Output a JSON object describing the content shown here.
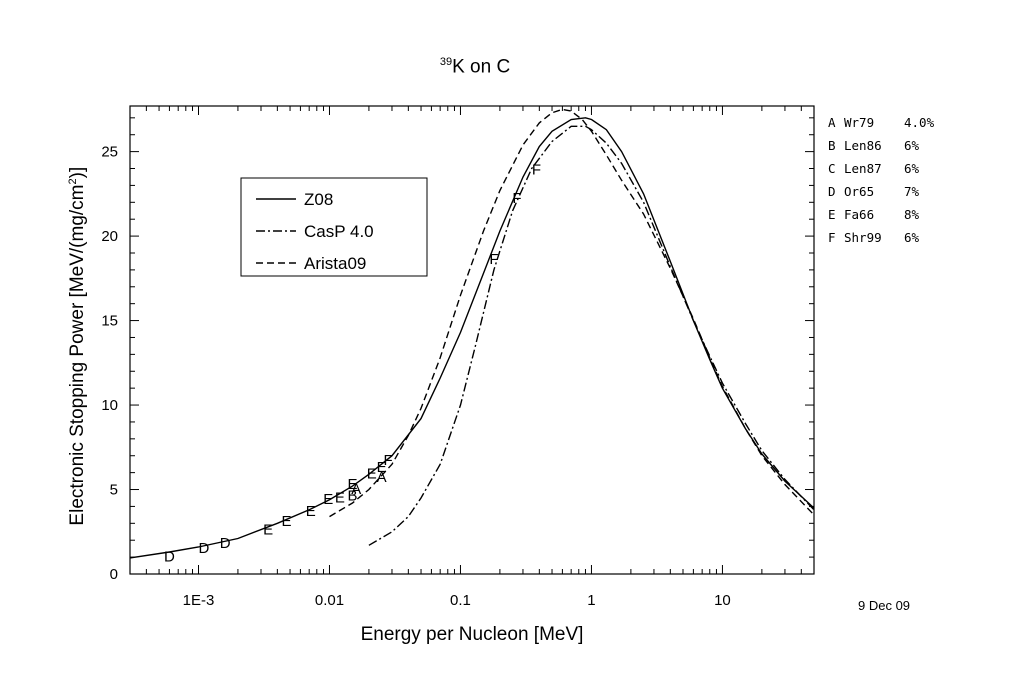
{
  "chart_data": {
    "type": "line",
    "title": {
      "superscript": "39",
      "text": "K on C"
    },
    "xlabel": "Energy per Nucleon [MeV]",
    "ylabel": {
      "text": "Electronic Stopping Power [MeV/(mg/cm",
      "superscript": "2",
      "suffix": ")]"
    },
    "x_scale": "log",
    "xlim": [
      0.0003,
      50
    ],
    "ylim": [
      0,
      27.7
    ],
    "x_ticks": [
      {
        "value": 0.001,
        "label": "1E-3"
      },
      {
        "value": 0.01,
        "label": "0.01"
      },
      {
        "value": 0.1,
        "label": "0.1"
      },
      {
        "value": 1,
        "label": "1"
      },
      {
        "value": 10,
        "label": "10"
      }
    ],
    "y_ticks": [
      {
        "value": 0,
        "label": "0"
      },
      {
        "value": 5,
        "label": "5"
      },
      {
        "value": 10,
        "label": "10"
      },
      {
        "value": 15,
        "label": "15"
      },
      {
        "value": 20,
        "label": "20"
      },
      {
        "value": 25,
        "label": "25"
      }
    ],
    "grid": false,
    "legend_position": "top-left",
    "series": [
      {
        "name": "Z08",
        "style": "solid",
        "x": [
          0.0003,
          0.0006,
          0.001,
          0.002,
          0.004,
          0.007,
          0.01,
          0.015,
          0.02,
          0.03,
          0.05,
          0.07,
          0.1,
          0.15,
          0.2,
          0.3,
          0.4,
          0.5,
          0.7,
          0.9,
          1.0,
          1.3,
          1.7,
          2.5,
          4,
          6,
          8,
          10,
          15,
          20,
          30,
          50
        ],
        "y": [
          0.95,
          1.3,
          1.6,
          2.1,
          3.0,
          3.8,
          4.4,
          5.2,
          5.9,
          7.0,
          9.2,
          11.6,
          14.3,
          17.8,
          20.3,
          23.5,
          25.3,
          26.2,
          26.9,
          27.0,
          26.9,
          26.3,
          25.0,
          22.5,
          18.5,
          15.0,
          12.7,
          11.0,
          8.6,
          7.1,
          5.5,
          3.9
        ]
      },
      {
        "name": "CasP 4.0",
        "style": "dashdot",
        "x": [
          0.02,
          0.03,
          0.04,
          0.05,
          0.07,
          0.1,
          0.13,
          0.18,
          0.25,
          0.35,
          0.5,
          0.7,
          0.9,
          1.0,
          1.3,
          1.7,
          2.5,
          4,
          6,
          8,
          10,
          15,
          20,
          30,
          50
        ],
        "y": [
          1.7,
          2.5,
          3.4,
          4.5,
          6.5,
          10.0,
          13.5,
          18.0,
          21.5,
          24.0,
          25.6,
          26.5,
          26.5,
          26.3,
          25.5,
          24.3,
          22.0,
          18.2,
          15.0,
          12.9,
          11.3,
          8.9,
          7.3,
          5.6,
          3.8
        ]
      },
      {
        "name": "Arista09",
        "style": "dashed",
        "x": [
          0.01,
          0.015,
          0.02,
          0.03,
          0.04,
          0.05,
          0.07,
          0.1,
          0.15,
          0.2,
          0.3,
          0.4,
          0.5,
          0.6,
          0.7,
          0.85,
          1.0,
          1.3,
          1.7,
          2.5,
          4,
          6,
          8,
          10,
          15,
          20,
          30,
          50
        ],
        "y": [
          3.4,
          4.2,
          5.0,
          6.5,
          8.2,
          9.8,
          12.8,
          16.5,
          20.3,
          22.7,
          25.4,
          26.7,
          27.3,
          27.5,
          27.4,
          26.9,
          26.2,
          24.8,
          23.3,
          21.3,
          18.1,
          15.1,
          12.8,
          11.1,
          8.6,
          7.0,
          5.3,
          3.5
        ]
      }
    ],
    "markers": [
      {
        "label": "D",
        "x": 0.0006,
        "y": 1.1
      },
      {
        "label": "D",
        "x": 0.0011,
        "y": 1.6
      },
      {
        "label": "D",
        "x": 0.0016,
        "y": 1.9
      },
      {
        "label": "E",
        "x": 0.0034,
        "y": 2.7
      },
      {
        "label": "E",
        "x": 0.0047,
        "y": 3.2
      },
      {
        "label": "E",
        "x": 0.0072,
        "y": 3.8
      },
      {
        "label": "E",
        "x": 0.0098,
        "y": 4.5
      },
      {
        "label": "E",
        "x": 0.012,
        "y": 4.6
      },
      {
        "label": "B",
        "x": 0.015,
        "y": 4.7
      },
      {
        "label": "A",
        "x": 0.016,
        "y": 5.1
      },
      {
        "label": "E",
        "x": 0.015,
        "y": 5.4
      },
      {
        "label": "E",
        "x": 0.021,
        "y": 6.0
      },
      {
        "label": "A",
        "x": 0.025,
        "y": 5.8
      },
      {
        "label": "E",
        "x": 0.025,
        "y": 6.4
      },
      {
        "label": "F",
        "x": 0.028,
        "y": 6.8
      },
      {
        "label": "F",
        "x": 0.18,
        "y": 18.7
      },
      {
        "label": "F",
        "x": 0.27,
        "y": 22.3
      },
      {
        "label": "F",
        "x": 0.38,
        "y": 24.0
      }
    ],
    "sources": [
      {
        "key": "A",
        "name": "Wr79",
        "uncertainty": "4.0%"
      },
      {
        "key": "B",
        "name": "Len86",
        "uncertainty": "6%"
      },
      {
        "key": "C",
        "name": "Len87",
        "uncertainty": "6%"
      },
      {
        "key": "D",
        "name": "Or65",
        "uncertainty": "7%"
      },
      {
        "key": "E",
        "name": "Fa66",
        "uncertainty": "8%"
      },
      {
        "key": "F",
        "name": "Shr99",
        "uncertainty": "6%"
      }
    ],
    "date": "9 Dec 09"
  }
}
